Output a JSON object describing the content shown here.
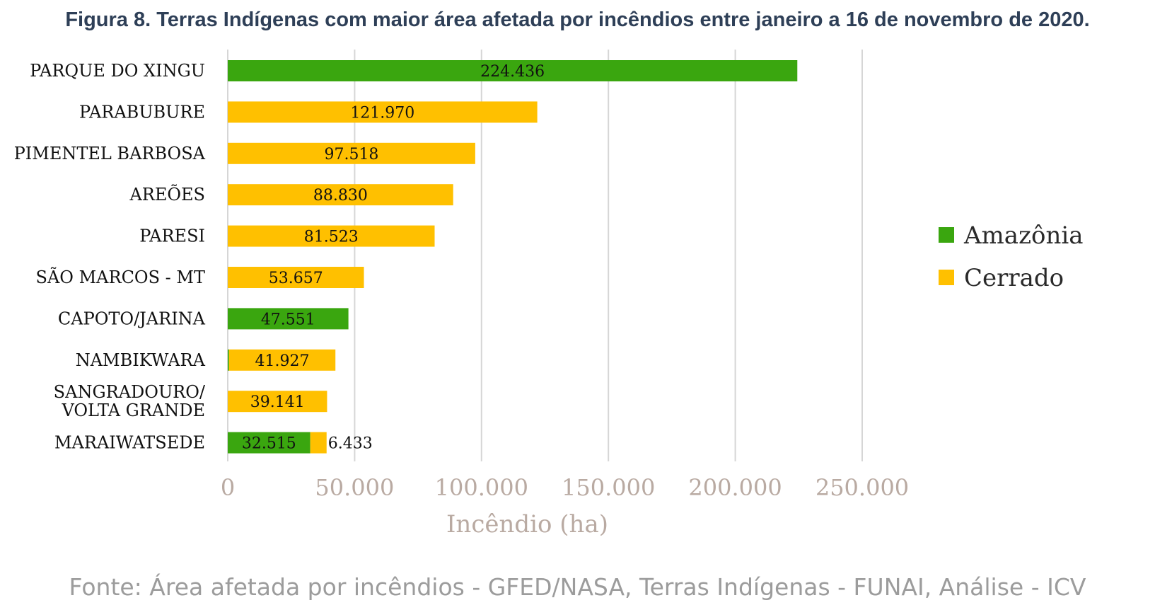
{
  "title": "Figura 8. Terras Indígenas com maior área afetada por incêndios entre janeiro a 16 de novembro de 2020.",
  "source": "Fonte: Área afetada por incêndios - GFED/NASA, Terras Indígenas - FUNAI, Análise - ICV",
  "colors": {
    "Amazônia": "#3aa60f",
    "Cerrado": "#ffc000",
    "grid": "#d6d6d6"
  },
  "chart_data": {
    "type": "bar",
    "orientation": "horizontal",
    "stacked": true,
    "categories": [
      [
        "PARQUE DO XINGU"
      ],
      [
        "PARABUBURE"
      ],
      [
        "PIMENTEL BARBOSA"
      ],
      [
        "AREÕES"
      ],
      [
        "PARESI"
      ],
      [
        "SÃO MARCOS - MT"
      ],
      [
        "CAPOTO/JARINA"
      ],
      [
        "NAMBIKWARA"
      ],
      [
        "SANGRADOURO/",
        "VOLTA GRANDE"
      ],
      [
        "MARAIWATSEDE"
      ]
    ],
    "series": [
      {
        "name": "Amazônia",
        "values": [
          224436,
          0,
          0,
          0,
          0,
          0,
          47551,
          500,
          0,
          32515
        ],
        "labels": [
          "224.436",
          "",
          "",
          "",
          "",
          "",
          "47.551",
          "",
          "",
          "32.515"
        ]
      },
      {
        "name": "Cerrado",
        "values": [
          0,
          121970,
          97518,
          88830,
          81523,
          53657,
          0,
          41927,
          39141,
          6433
        ],
        "labels": [
          "",
          "121.970",
          "97.518",
          "88.830",
          "81.523",
          "53.657",
          "",
          "41.927",
          "39.141",
          "6.433"
        ]
      }
    ],
    "xlabel": "Incêndio (ha)",
    "xlim": [
      0,
      250000
    ],
    "xticks": [
      0,
      50000,
      100000,
      150000,
      200000,
      250000
    ],
    "xtick_labels": [
      "0",
      "50.000",
      "100.000",
      "150.000",
      "200.000",
      "250.000"
    ],
    "grid": "vertical",
    "legend": "right"
  }
}
